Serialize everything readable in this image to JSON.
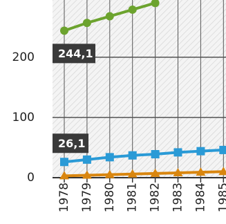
{
  "chart_data": {
    "type": "line",
    "categories": [
      "1978",
      "1979",
      "1980",
      "1981",
      "1982",
      "1983",
      "1984",
      "1985"
    ],
    "series": [
      {
        "color": "#6ca32e",
        "marker": "circle",
        "values": [
          244.1,
          257,
          268,
          279,
          290,
          null,
          null,
          null
        ],
        "value_labels": [
          "244,1",
          null,
          null,
          null,
          null,
          null,
          null,
          null
        ]
      },
      {
        "color": "#2a9ad6",
        "marker": "square",
        "values": [
          26.1,
          30,
          34,
          37,
          39,
          42,
          44,
          46
        ],
        "value_labels": [
          "26,1",
          null,
          null,
          null,
          null,
          null,
          null,
          null
        ]
      },
      {
        "color": "#d9860f",
        "marker": "triangle",
        "values": [
          3,
          4,
          5,
          6,
          7,
          8,
          9,
          10
        ]
      }
    ],
    "ylim": [
      0,
      295
    ],
    "yticks": [
      0,
      100,
      200
    ],
    "grid": true
  }
}
